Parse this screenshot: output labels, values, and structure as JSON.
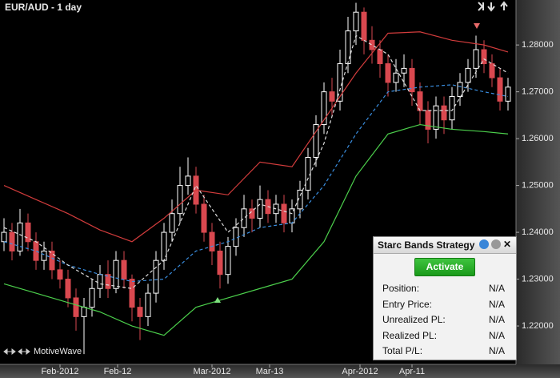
{
  "chart_data": {
    "type": "candlestick",
    "title": "EUR/AUD - 1 day",
    "brand": "MotiveWave",
    "up_color": "#ffffff",
    "down_color": "#d9484f",
    "x": [
      0,
      1,
      2,
      3,
      4,
      5,
      6,
      7,
      8,
      9,
      10,
      11,
      12,
      13,
      14,
      15,
      16,
      17,
      18,
      19,
      20,
      21,
      22,
      23,
      24,
      25,
      26,
      27,
      28,
      29,
      30,
      31,
      32,
      33,
      34,
      35,
      36,
      37,
      38,
      39,
      40,
      41,
      42,
      43,
      44,
      45,
      46,
      47,
      48,
      49,
      50,
      51,
      52,
      53,
      54,
      55,
      56,
      57,
      58,
      59,
      60,
      61,
      62,
      63
    ],
    "open": [
      1.238,
      1.24,
      1.236,
      1.242,
      1.238,
      1.234,
      1.236,
      1.232,
      1.23,
      1.226,
      1.222,
      1.224,
      1.228,
      1.231,
      1.228,
      1.234,
      1.23,
      1.224,
      1.222,
      1.227,
      1.234,
      1.24,
      1.244,
      1.25,
      1.252,
      1.246,
      1.24,
      1.236,
      1.231,
      1.237,
      1.241,
      1.245,
      1.243,
      1.247,
      1.244,
      1.246,
      1.242,
      1.245,
      1.249,
      1.256,
      1.263,
      1.27,
      1.268,
      1.276,
      1.283,
      1.287,
      1.281,
      1.279,
      1.276,
      1.272,
      1.274,
      1.275,
      1.27,
      1.266,
      1.262,
      1.267,
      1.264,
      1.269,
      1.272,
      1.275,
      1.279,
      1.276,
      1.273,
      1.268
    ],
    "high": [
      1.243,
      1.242,
      1.245,
      1.244,
      1.24,
      1.238,
      1.238,
      1.234,
      1.232,
      1.228,
      1.226,
      1.23,
      1.233,
      1.234,
      1.236,
      1.236,
      1.231,
      1.226,
      1.229,
      1.236,
      1.242,
      1.247,
      1.254,
      1.256,
      1.254,
      1.248,
      1.242,
      1.238,
      1.239,
      1.243,
      1.248,
      1.247,
      1.25,
      1.249,
      1.248,
      1.248,
      1.247,
      1.251,
      1.258,
      1.265,
      1.272,
      1.273,
      1.279,
      1.286,
      1.289,
      1.288,
      1.284,
      1.281,
      1.278,
      1.277,
      1.278,
      1.277,
      1.272,
      1.268,
      1.269,
      1.269,
      1.271,
      1.274,
      1.277,
      1.282,
      1.281,
      1.278,
      1.275,
      1.273
    ],
    "low": [
      1.236,
      1.234,
      1.235,
      1.236,
      1.232,
      1.232,
      1.23,
      1.228,
      1.224,
      1.219,
      1.214,
      1.222,
      1.226,
      1.226,
      1.227,
      1.228,
      1.221,
      1.217,
      1.22,
      1.225,
      1.232,
      1.238,
      1.242,
      1.248,
      1.244,
      1.238,
      1.233,
      1.228,
      1.229,
      1.235,
      1.239,
      1.24,
      1.241,
      1.242,
      1.242,
      1.24,
      1.24,
      1.243,
      1.247,
      1.254,
      1.261,
      1.265,
      1.266,
      1.274,
      1.28,
      1.278,
      1.276,
      1.273,
      1.269,
      1.27,
      1.271,
      1.267,
      1.263,
      1.259,
      1.26,
      1.261,
      1.262,
      1.267,
      1.27,
      1.273,
      1.274,
      1.271,
      1.266,
      1.266
    ],
    "close": [
      1.24,
      1.236,
      1.242,
      1.238,
      1.234,
      1.236,
      1.232,
      1.23,
      1.226,
      1.222,
      1.224,
      1.228,
      1.231,
      1.228,
      1.234,
      1.23,
      1.224,
      1.222,
      1.227,
      1.234,
      1.24,
      1.244,
      1.25,
      1.252,
      1.246,
      1.24,
      1.236,
      1.231,
      1.237,
      1.241,
      1.245,
      1.243,
      1.247,
      1.244,
      1.246,
      1.242,
      1.245,
      1.249,
      1.256,
      1.263,
      1.27,
      1.268,
      1.276,
      1.283,
      1.287,
      1.281,
      1.279,
      1.276,
      1.272,
      1.274,
      1.275,
      1.27,
      1.266,
      1.262,
      1.267,
      1.264,
      1.269,
      1.272,
      1.275,
      1.279,
      1.276,
      1.273,
      1.268,
      1.271
    ],
    "lines": [
      {
        "color": "#d23c3c",
        "dashed": false,
        "x": [
          0,
          4,
          8,
          12,
          16,
          20,
          24,
          28,
          32,
          36,
          40,
          44,
          48,
          52,
          56,
          60,
          63
        ],
        "values": [
          1.25,
          1.247,
          1.244,
          1.2405,
          1.238,
          1.243,
          1.249,
          1.248,
          1.255,
          1.254,
          1.264,
          1.274,
          1.2825,
          1.2828,
          1.281,
          1.28,
          1.2785
        ]
      },
      {
        "color": "#3a8ee0",
        "dashed": true,
        "x": [
          0,
          4,
          8,
          12,
          16,
          20,
          24,
          28,
          32,
          36,
          40,
          44,
          48,
          52,
          56,
          60,
          63
        ],
        "values": [
          1.238,
          1.236,
          1.233,
          1.231,
          1.2295,
          1.23,
          1.236,
          1.238,
          1.241,
          1.242,
          1.25,
          1.261,
          1.27,
          1.271,
          1.2715,
          1.27,
          1.269
        ]
      },
      {
        "color": "#4cd04c",
        "dashed": false,
        "x": [
          0,
          4,
          8,
          12,
          16,
          20,
          24,
          28,
          32,
          36,
          40,
          44,
          48,
          52,
          56,
          60,
          63
        ],
        "values": [
          1.229,
          1.227,
          1.225,
          1.223,
          1.22,
          1.218,
          1.224,
          1.226,
          1.228,
          1.23,
          1.238,
          1.252,
          1.261,
          1.263,
          1.262,
          1.2615,
          1.261
        ]
      },
      {
        "color": "#dddddd",
        "dashed": true,
        "x": [
          0,
          4,
          8,
          12,
          16,
          20,
          24,
          28,
          32,
          36,
          40,
          44,
          48,
          52,
          56,
          60,
          63
        ],
        "values": [
          1.241,
          1.238,
          1.233,
          1.229,
          1.228,
          1.234,
          1.25,
          1.24,
          1.246,
          1.244,
          1.259,
          1.282,
          1.278,
          1.266,
          1.266,
          1.277,
          1.274
        ]
      }
    ],
    "xlim": [
      -0.5,
      64
    ],
    "xticks": [
      {
        "value": 7,
        "label": "Feb-2012"
      },
      {
        "value": 14.2,
        "label": "Feb-12"
      },
      {
        "value": 26,
        "label": "Mar-2012"
      },
      {
        "value": 33.2,
        "label": "Mar-13"
      },
      {
        "value": 44.5,
        "label": "Apr-2012"
      },
      {
        "value": 51,
        "label": "Apr-11"
      }
    ],
    "ylim": [
      1.2118,
      1.2896
    ],
    "yticks": [
      {
        "value": 1.22,
        "label": "1.22000"
      },
      {
        "value": 1.23,
        "label": "1.23000"
      },
      {
        "value": 1.24,
        "label": "1.24000"
      },
      {
        "value": 1.25,
        "label": "1.25000"
      },
      {
        "value": 1.26,
        "label": "1.26000"
      },
      {
        "value": 1.27,
        "label": "1.27000"
      },
      {
        "value": 1.28,
        "label": "1.28000"
      }
    ]
  },
  "panel": {
    "title": "Starc Bands Strategy",
    "button": "Activate",
    "rows": [
      [
        "Position:",
        "N/A"
      ],
      [
        "Entry Price:",
        "N/A"
      ],
      [
        "Unrealized PL:",
        "N/A"
      ],
      [
        "Realized PL:",
        "N/A"
      ],
      [
        "Total P/L:",
        "N/A"
      ]
    ]
  }
}
